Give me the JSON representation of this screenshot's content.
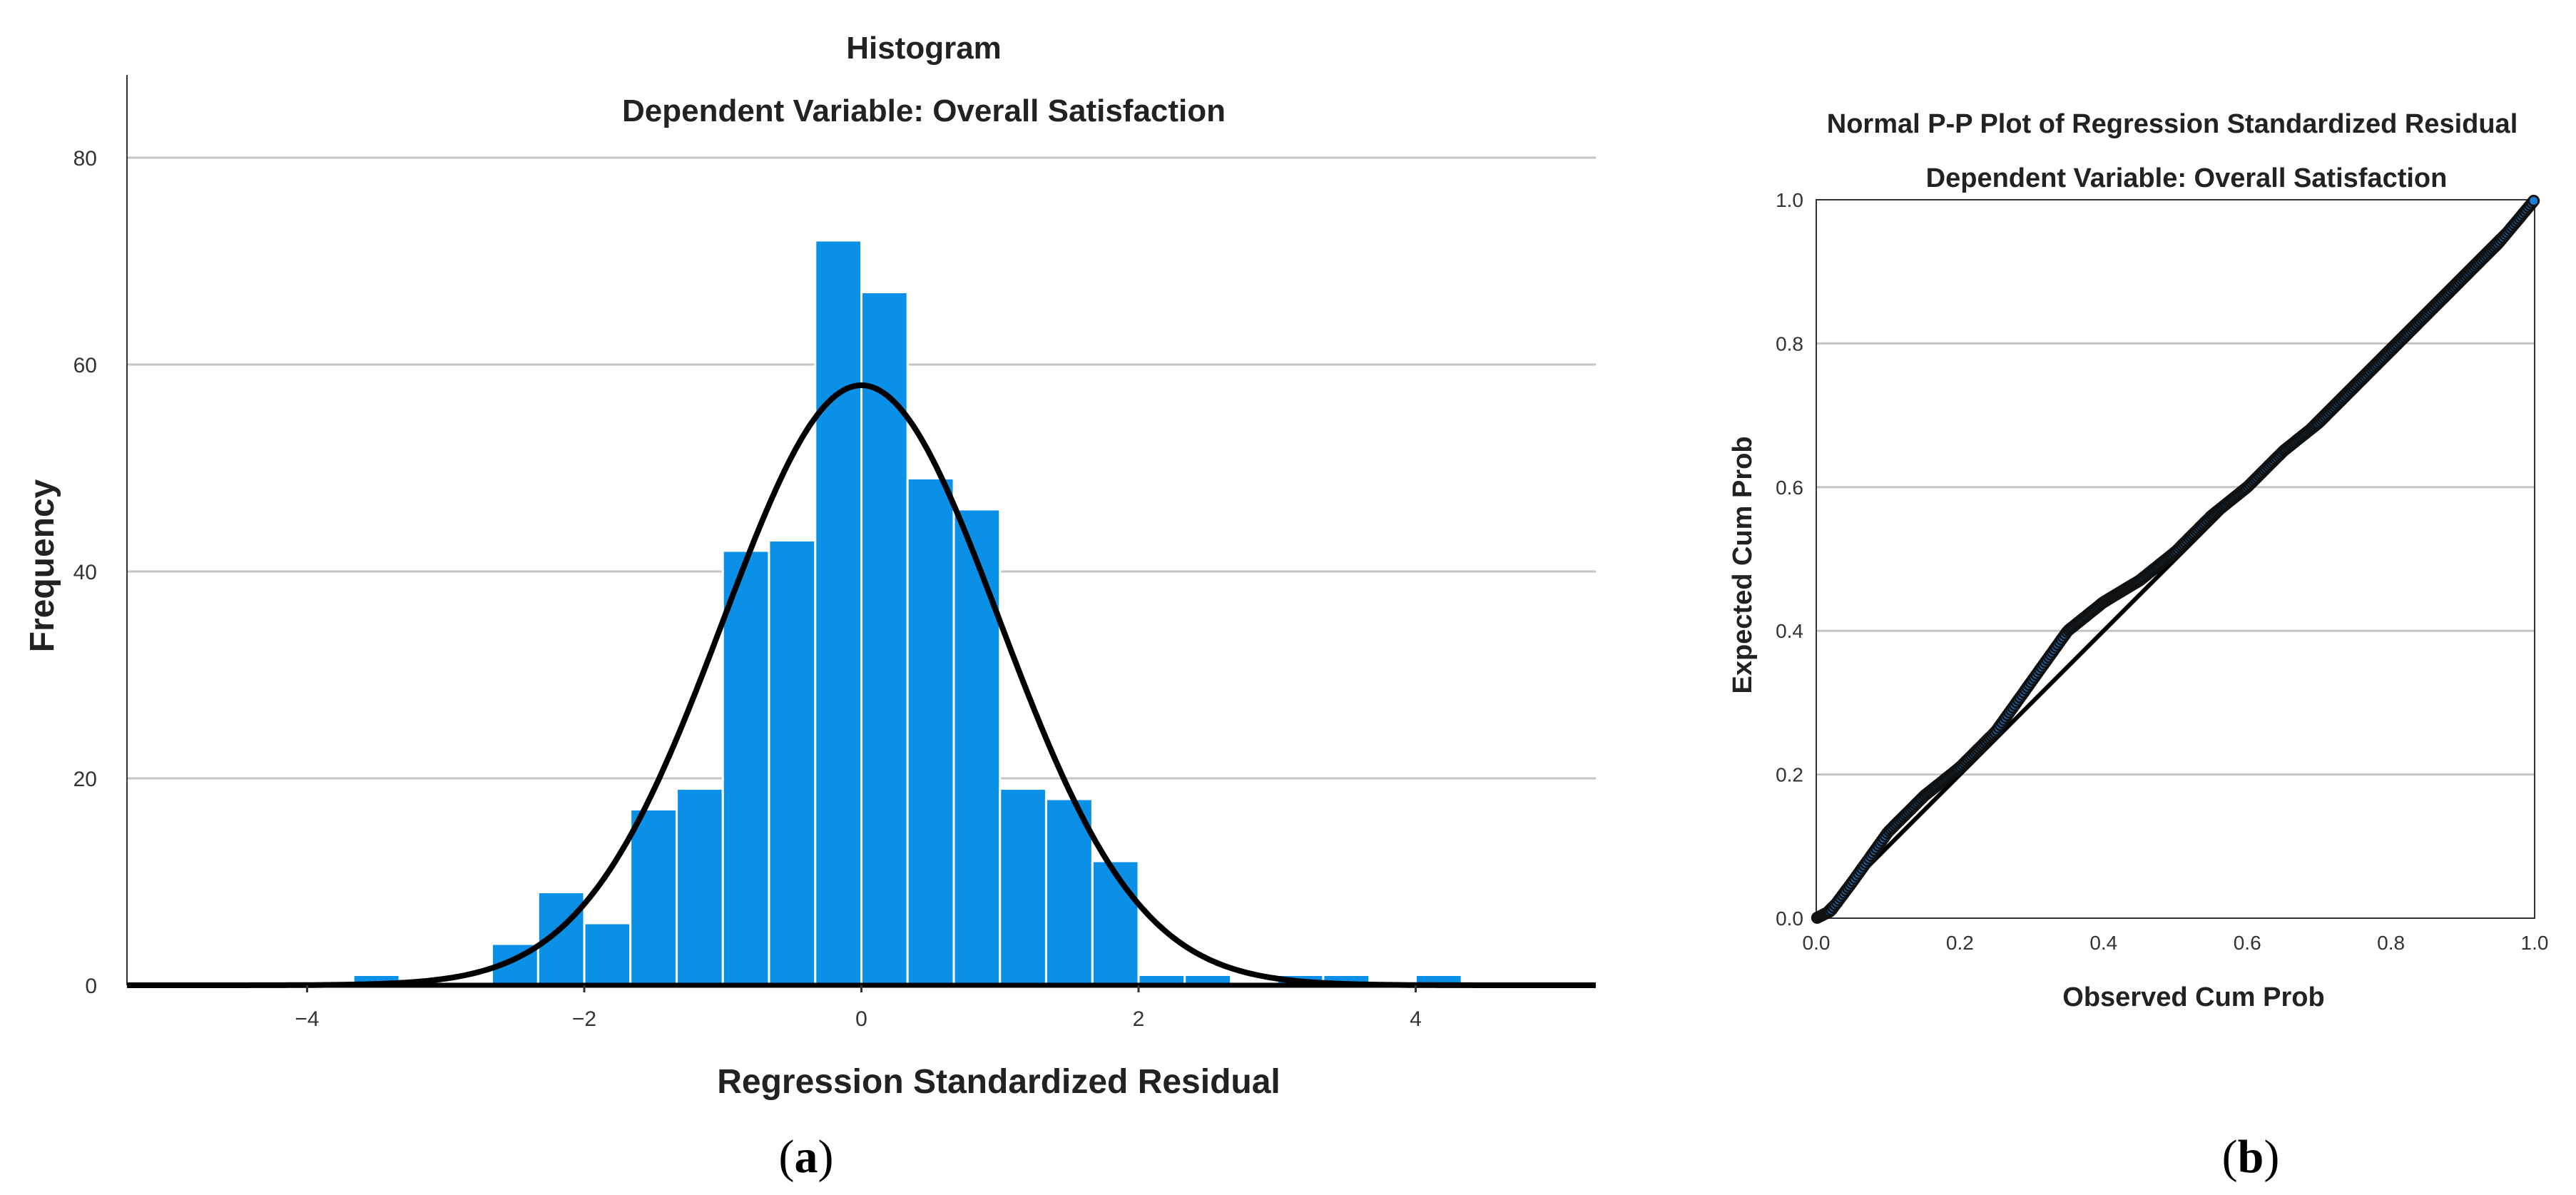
{
  "chart_data": [
    {
      "type": "bar",
      "subtype": "histogram",
      "panel_label": "(a)",
      "title": "Histogram",
      "subtitle": "Dependent Variable:  Overall Satisfaction",
      "xlabel": "Regression Standardized Residual",
      "ylabel": "Frequency",
      "xlim": [
        -5.3,
        5.3
      ],
      "ylim": [
        0,
        88
      ],
      "xticks": [
        -4,
        -2,
        0,
        2,
        4
      ],
      "yticks": [
        0,
        20,
        40,
        60,
        80
      ],
      "ytick_labels": [
        "0",
        "20",
        "40",
        "60",
        "80"
      ],
      "xtick_labels": [
        "−4",
        "−2",
        "0",
        "2",
        "4"
      ],
      "grid": true,
      "bar_color": "#0A90E6",
      "bin_width": 0.3333,
      "bins": [
        {
          "x0": -3.667,
          "x1": -3.333,
          "count": 1
        },
        {
          "x0": -2.667,
          "x1": -2.333,
          "count": 4
        },
        {
          "x0": -2.333,
          "x1": -2.0,
          "count": 9
        },
        {
          "x0": -2.0,
          "x1": -1.667,
          "count": 6
        },
        {
          "x0": -1.667,
          "x1": -1.333,
          "count": 17
        },
        {
          "x0": -1.333,
          "x1": -1.0,
          "count": 19
        },
        {
          "x0": -1.0,
          "x1": -0.667,
          "count": 42
        },
        {
          "x0": -0.667,
          "x1": -0.333,
          "count": 43
        },
        {
          "x0": -0.333,
          "x1": 0.0,
          "count": 72
        },
        {
          "x0": 0.0,
          "x1": 0.333,
          "count": 67
        },
        {
          "x0": 0.333,
          "x1": 0.667,
          "count": 49
        },
        {
          "x0": 0.667,
          "x1": 1.0,
          "count": 46
        },
        {
          "x0": 1.0,
          "x1": 1.333,
          "count": 19
        },
        {
          "x0": 1.333,
          "x1": 1.667,
          "count": 18
        },
        {
          "x0": 1.667,
          "x1": 2.0,
          "count": 12
        },
        {
          "x0": 2.0,
          "x1": 2.333,
          "count": 1
        },
        {
          "x0": 2.333,
          "x1": 2.667,
          "count": 1
        },
        {
          "x0": 3.0,
          "x1": 3.333,
          "count": 1
        },
        {
          "x0": 3.333,
          "x1": 3.667,
          "count": 1
        },
        {
          "x0": 4.0,
          "x1": 4.333,
          "count": 1
        }
      ],
      "normal_curve": {
        "mean": 0,
        "std_dev": 1,
        "peak": 58,
        "color": "#000000"
      }
    },
    {
      "type": "line",
      "subtype": "pp-plot",
      "panel_label": "(b)",
      "title": "Normal P-P Plot of Regression Standardized Residual",
      "subtitle": "Dependent Variable: Overall Satisfaction",
      "xlabel": "Observed Cum Prob",
      "ylabel": "Expected Cum Prob",
      "xlim": [
        0,
        1
      ],
      "ylim": [
        0,
        1
      ],
      "xticks": [
        0.0,
        0.2,
        0.4,
        0.6,
        0.8,
        1.0
      ],
      "yticks": [
        0.0,
        0.2,
        0.4,
        0.6,
        0.8,
        1.0
      ],
      "xtick_labels": [
        "0.0",
        "0.2",
        "0.4",
        "0.6",
        "0.8",
        "1.0"
      ],
      "ytick_labels": [
        "0.0",
        "0.2",
        "0.4",
        "0.6",
        "0.8",
        "1.0"
      ],
      "grid": true,
      "reference_line": {
        "x": [
          0,
          1
        ],
        "y": [
          0,
          1
        ],
        "color": "#000000"
      },
      "point_color": "#1C7FD6",
      "points_curve": {
        "x": [
          0.0,
          0.02,
          0.05,
          0.1,
          0.15,
          0.2,
          0.25,
          0.3,
          0.35,
          0.4,
          0.45,
          0.5,
          0.55,
          0.6,
          0.65,
          0.7,
          0.75,
          0.8,
          0.85,
          0.9,
          0.95,
          1.0
        ],
        "y": [
          0.0,
          0.01,
          0.05,
          0.12,
          0.17,
          0.21,
          0.26,
          0.33,
          0.4,
          0.44,
          0.47,
          0.51,
          0.56,
          0.6,
          0.65,
          0.69,
          0.74,
          0.79,
          0.84,
          0.89,
          0.94,
          1.0
        ]
      },
      "point_count": 400
    }
  ]
}
